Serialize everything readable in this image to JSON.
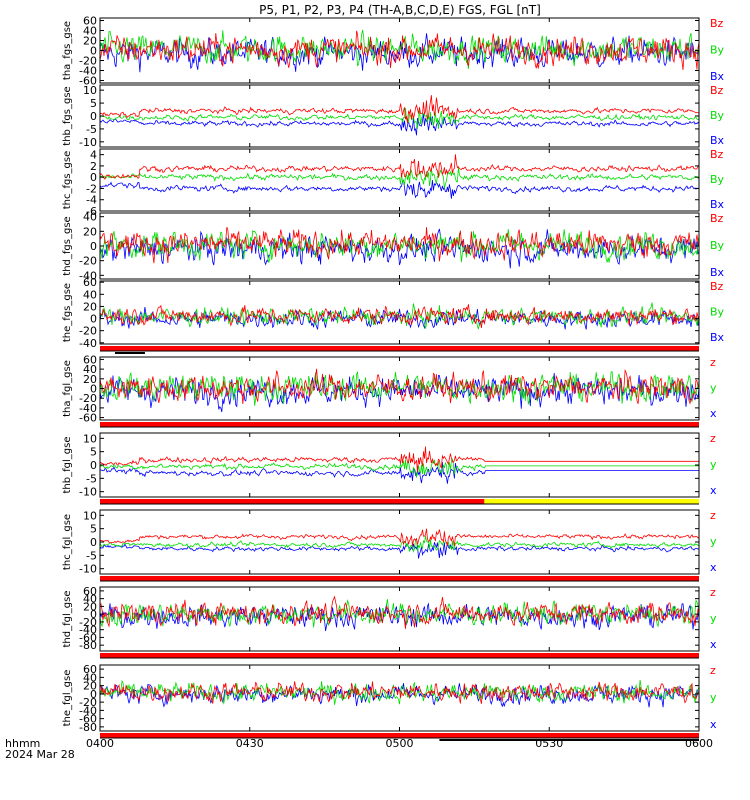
{
  "title": "P5, P1, P2, P3, P4 (TH-A,B,C,D,E) FGS, FGL [nT]",
  "footer": {
    "label": "hhmm",
    "date": "2024 Mar 28"
  },
  "colors": {
    "x": "#0000ff",
    "y": "#00dd00",
    "z": "#ff0000",
    "flag_red": "#ff0000",
    "flag_yellow": "#ffff00",
    "flag_black": "#000000",
    "axis": "#000000"
  },
  "chart_data": {
    "type": "line",
    "xlabel": "",
    "x_ticks": [
      "0400",
      "0430",
      "0500",
      "0530",
      "0600"
    ],
    "x_range_minutes": [
      0,
      120
    ],
    "panels": [
      {
        "ylabel": "tha_fgs_gse",
        "ylim": [
          -65,
          65
        ],
        "yticks": [
          60,
          40,
          20,
          0,
          -20,
          -40,
          -60
        ],
        "amplitude": 20,
        "offsets": {
          "x": -5,
          "y": 3,
          "z": 2
        },
        "style": "turbulent",
        "legend": [
          "Bz",
          "By",
          "Bx"
        ],
        "flag": null
      },
      {
        "ylabel": "thb_fgs_gse",
        "ylim": [
          -12,
          12
        ],
        "yticks": [
          10,
          5,
          0,
          -5,
          -10
        ],
        "amplitude": 1.0,
        "offsets": {
          "x": -3,
          "y": -0.5,
          "z": 2
        },
        "style": "quiet",
        "legend": [
          "Bz",
          "By",
          "Bx"
        ],
        "flag": null
      },
      {
        "ylabel": "thc_fgs_gse",
        "ylim": [
          -6,
          5
        ],
        "yticks": [
          4,
          2,
          0,
          -2,
          -4,
          -6
        ],
        "amplitude": 0.5,
        "offsets": {
          "x": -2,
          "y": 0,
          "z": 1.5
        },
        "style": "quiet",
        "legend": [
          "Bz",
          "By",
          "Bx"
        ],
        "flag": null
      },
      {
        "ylabel": "thd_fgs_gse",
        "ylim": [
          -45,
          45
        ],
        "yticks": [
          40,
          20,
          0,
          -20,
          -40
        ],
        "amplitude": 13,
        "offsets": {
          "x": -4,
          "y": 2,
          "z": 3
        },
        "style": "turbulent",
        "legend": [
          "Bz",
          "By",
          "Bx"
        ],
        "flag": null
      },
      {
        "ylabel": "the_fgs_gse",
        "ylim": [
          -42,
          62
        ],
        "yticks": [
          60,
          40,
          20,
          0,
          -20,
          -40
        ],
        "amplitude": 10,
        "offsets": {
          "x": 0,
          "y": 3,
          "z": 5
        },
        "style": "turbulent",
        "legend": [
          "Bz",
          "By",
          "Bx"
        ],
        "flag": {
          "segments": [
            {
              "from": 0,
              "to": 120,
              "color": "red"
            }
          ],
          "marker": {
            "from": 3,
            "to": 9
          }
        }
      },
      {
        "ylabel": "tha_fgl_gse",
        "ylim": [
          -65,
          65
        ],
        "yticks": [
          60,
          40,
          20,
          0,
          -20,
          -40,
          -60
        ],
        "amplitude": 20,
        "offsets": {
          "x": -5,
          "y": 3,
          "z": 2
        },
        "style": "turbulent",
        "legend": [
          "z",
          "y",
          "x"
        ],
        "flag": {
          "segments": [
            {
              "from": 0,
              "to": 120,
              "color": "red"
            }
          ]
        }
      },
      {
        "ylabel": "thb_fgl_gse",
        "ylim": [
          -12,
          12
        ],
        "yticks": [
          10,
          5,
          0,
          -5,
          -10
        ],
        "amplitude": 1.0,
        "offsets": {
          "x": -3,
          "y": -0.5,
          "z": 2
        },
        "style": "quiet_cut",
        "cut_minute": 77,
        "legend": [
          "z",
          "y",
          "x"
        ],
        "flag": {
          "segments": [
            {
              "from": 0,
              "to": 77,
              "color": "red"
            },
            {
              "from": 77,
              "to": 120,
              "color": "yellow"
            }
          ]
        }
      },
      {
        "ylabel": "thc_fgl_gse",
        "ylim": [
          -12,
          12
        ],
        "yticks": [
          10,
          5,
          0,
          -5,
          -10
        ],
        "amplitude": 0.8,
        "offsets": {
          "x": -2.5,
          "y": -1,
          "z": 2
        },
        "style": "quiet",
        "legend": [
          "z",
          "y",
          "x"
        ],
        "flag": {
          "segments": [
            {
              "from": 0,
              "to": 120,
              "color": "red"
            }
          ]
        }
      },
      {
        "ylabel": "thd_fgl_gse",
        "ylim": [
          -95,
          70
        ],
        "yticks": [
          60,
          40,
          20,
          0,
          -20,
          -40,
          -60,
          -80
        ],
        "amplitude": 20,
        "offsets": {
          "x": -5,
          "y": 0,
          "z": 3
        },
        "style": "turbulent",
        "legend": [
          "z",
          "y",
          "x"
        ],
        "flag": {
          "segments": [
            {
              "from": 0,
              "to": 120,
              "color": "red"
            }
          ]
        }
      },
      {
        "ylabel": "the_fgl_gse",
        "ylim": [
          -90,
          70
        ],
        "yticks": [
          60,
          40,
          20,
          0,
          -20,
          -40,
          -60,
          -80
        ],
        "amplitude": 16,
        "offsets": {
          "x": 0,
          "y": 3,
          "z": 5
        },
        "style": "turbulent",
        "legend": [
          "z",
          "y",
          "x"
        ],
        "flag": {
          "segments": [
            {
              "from": 0,
              "to": 120,
              "color": "red"
            }
          ],
          "marker": {
            "from": 68,
            "to": 120
          }
        }
      }
    ]
  }
}
